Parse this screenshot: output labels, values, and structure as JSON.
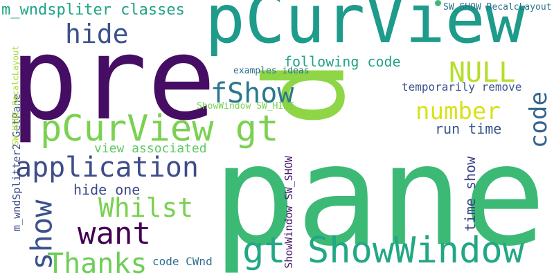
{
  "words": [
    {
      "text": "pane",
      "color": "#3cba75"
    },
    {
      "text": "pre",
      "color": "#460d64"
    },
    {
      "text": "p",
      "color": "#8ed645"
    },
    {
      "text": "pCurView",
      "color": "#1e9b8a"
    },
    {
      "text": "pCurView gt",
      "color": "#7ad151"
    },
    {
      "text": "gt ShowWindow",
      "color": "#22a785"
    },
    {
      "text": "application",
      "color": "#3e4c8a"
    },
    {
      "text": "Whilst",
      "color": "#7ad151"
    },
    {
      "text": "Thanks",
      "color": "#6ece58"
    },
    {
      "text": "want",
      "color": "#440154"
    },
    {
      "text": "show",
      "color": "#3b528b"
    },
    {
      "text": "fShow",
      "color": "#2a788e"
    },
    {
      "text": "hide",
      "color": "#3b528b"
    },
    {
      "text": "NULL",
      "color": "#b5de2b"
    },
    {
      "text": "number",
      "color": "#d8e219"
    },
    {
      "text": "code",
      "color": "#33638d"
    },
    {
      "text": "m_wndspliter classes",
      "color": "#20a386"
    },
    {
      "text": "following code",
      "color": "#20a386"
    },
    {
      "text": "run time",
      "color": "#39568c"
    },
    {
      "text": "view associated",
      "color": "#5ec962"
    },
    {
      "text": "hide one",
      "color": "#3e4a89"
    },
    {
      "text": "time show",
      "color": "#3f4788"
    },
    {
      "text": "temporarily remove",
      "color": "#3b528b"
    },
    {
      "text": "examples ideas",
      "color": "#2c728e"
    },
    {
      "text": "ShowWindow SW_HIDE",
      "color": "#7ad151"
    },
    {
      "text": "SW_SHOW RecalcLayout",
      "color": "#2c728e"
    },
    {
      "text": "code CWnd",
      "color": "#2e6f8e"
    },
    {
      "text": "ShowWindow SW_SHOW",
      "color": "#481a6c"
    },
    {
      "text": "m_wndSplitter2 GetPane",
      "color": "#3e4c8a"
    },
    {
      "text": "SW_HIDE RecalcLayout",
      "color": "#a8db34"
    }
  ]
}
